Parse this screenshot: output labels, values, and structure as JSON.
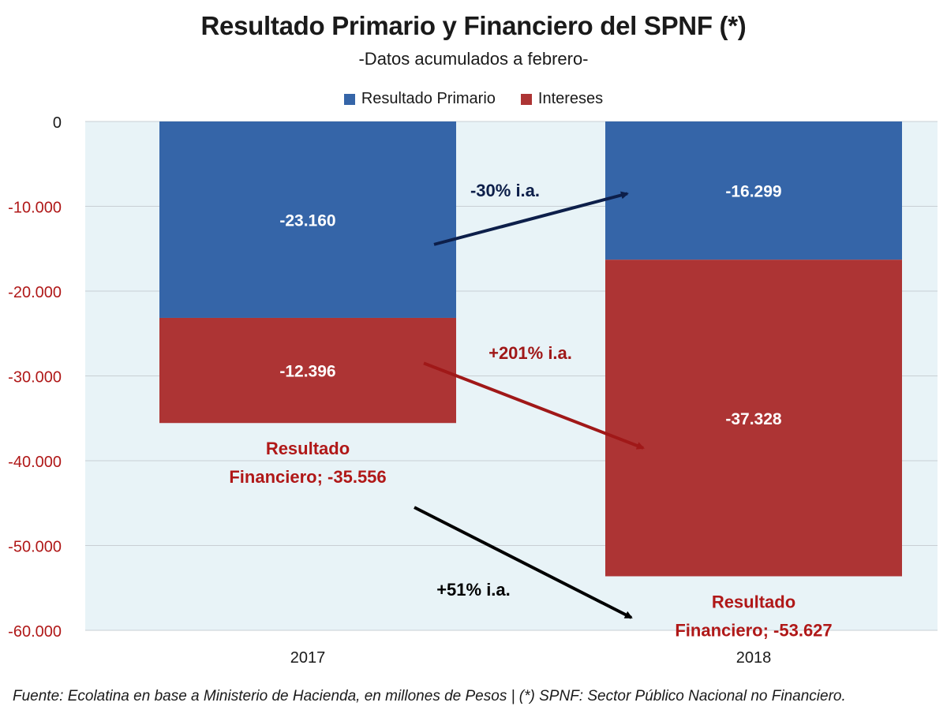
{
  "title": "Resultado Primario y Financiero del SPNF (*)",
  "subtitle": "-Datos acumulados a febrero-",
  "legend": [
    {
      "label": "Resultado Primario",
      "color": "#3565a8"
    },
    {
      "label": "Intereses",
      "color": "#ad3434"
    }
  ],
  "source": "Fuente: Ecolatina en base a Ministerio de Hacienda, en millones de Pesos | (*) SPNF: Sector Público Nacional no Financiero.",
  "chart_data": {
    "type": "bar",
    "stacked": true,
    "categories": [
      "2017",
      "2018"
    ],
    "series": [
      {
        "name": "Resultado Primario",
        "values": [
          -23160,
          -16299
        ],
        "labels": [
          "-23.160",
          "-16.299"
        ],
        "color": "#3565a8"
      },
      {
        "name": "Intereses",
        "values": [
          -12396,
          -37328
        ],
        "labels": [
          "-12.396",
          "-37.328"
        ],
        "color": "#ad3434"
      }
    ],
    "totals": [
      {
        "line1": "Resultado",
        "line2": "Financiero;  -35.556",
        "value": -35556
      },
      {
        "line1": "Resultado",
        "line2": "Financiero;  -53.627",
        "value": -53627
      }
    ],
    "ylim": [
      -60000,
      0
    ],
    "yticks": [
      0,
      -10000,
      -20000,
      -30000,
      -40000,
      -50000,
      -60000
    ],
    "ytick_labels": [
      "0",
      "-10.000",
      "-20.000",
      "-30.000",
      "-40.000",
      "-50.000",
      "-60.000"
    ],
    "grid": true,
    "background": "#e8f3f7",
    "annotations": [
      {
        "text": "-30% i.a.",
        "color": "#0d1f4a",
        "from": [
          "2017",
          -14500
        ],
        "to": [
          "2018",
          -8500
        ]
      },
      {
        "text": "+201% i.a.",
        "color": "#a01818",
        "from": [
          "2017",
          -28500
        ],
        "to": [
          "2018",
          -38500
        ]
      },
      {
        "text": "+51% i.a.",
        "color": "#000000",
        "from": [
          "2017",
          -45500
        ],
        "to": [
          "2018",
          -58500
        ]
      }
    ]
  }
}
